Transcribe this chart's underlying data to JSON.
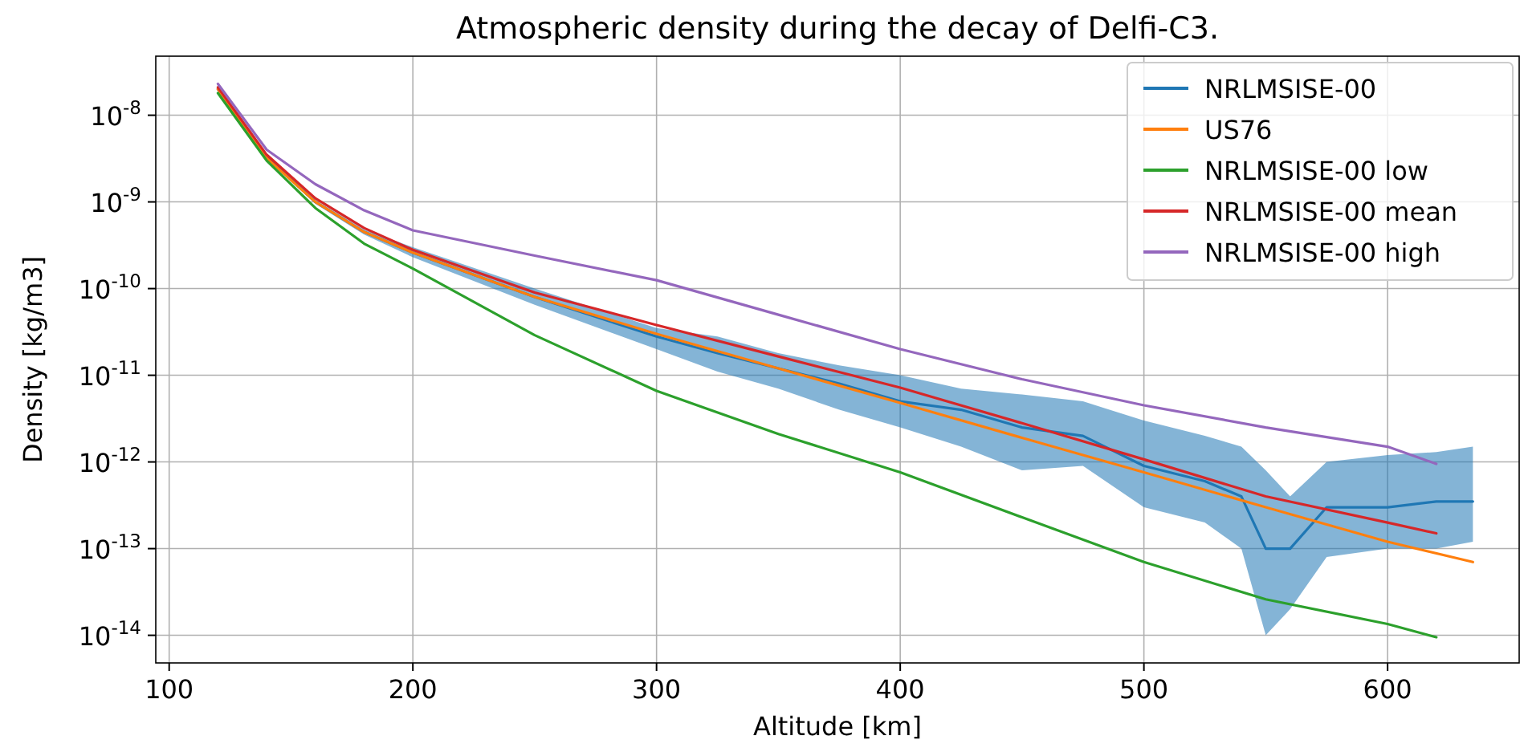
{
  "chart_data": {
    "type": "line",
    "title": "Atmospheric density during the decay of Delfi-C3.",
    "xlabel": "Altitude [km]",
    "ylabel": "Density [kg/m3]",
    "log": "y",
    "grid": true,
    "legend": "top right",
    "xlim": [
      94.5,
      654
    ],
    "xticks": [
      100,
      200,
      300,
      400,
      500,
      600
    ],
    "ylim": [
      4.8e-15,
      4.8e-08
    ],
    "yticks": [
      {
        "value": 1e-14,
        "label": "10$^{-14}$"
      },
      {
        "value": 1e-13,
        "label": "10$^{-13}$"
      },
      {
        "value": 1e-12,
        "label": "10$^{-12}$"
      },
      {
        "value": 1e-11,
        "label": "10$^{-11}$"
      },
      {
        "value": 1e-10,
        "label": "10$^{-10}$"
      },
      {
        "value": 1e-09,
        "label": "10$^{-9}$"
      },
      {
        "value": 1e-08,
        "label": "10$^{-8}$"
      }
    ],
    "series": [
      {
        "name": "NRLMSISE-00",
        "color": "#1f77b4",
        "x": [
          120,
          140,
          160,
          180,
          200,
          250,
          300,
          325,
          350,
          375,
          400,
          425,
          450,
          475,
          500,
          525,
          540,
          550,
          560,
          575,
          600,
          620,
          635
        ],
        "values": [
          2e-08,
          3.3e-09,
          1e-09,
          4.5e-10,
          2.6e-10,
          8e-11,
          2.8e-11,
          1.8e-11,
          1.2e-11,
          8e-12,
          5e-12,
          4e-12,
          2.5e-12,
          2e-12,
          9e-13,
          6e-13,
          4e-13,
          1e-13,
          1e-13,
          3e-13,
          3e-13,
          3.5e-13,
          3.5e-13
        ],
        "lower": [
          1.9e-08,
          3.1e-09,
          9.5e-10,
          4.2e-10,
          2.3e-10,
          6.5e-11,
          2e-11,
          1.1e-11,
          7e-12,
          4e-12,
          2.5e-12,
          1.5e-12,
          8e-13,
          9e-13,
          3e-13,
          2e-13,
          1e-13,
          1e-14,
          2e-14,
          8e-14,
          1e-13,
          1e-13,
          1.2e-13
        ],
        "upper": [
          2.1e-08,
          3.5e-09,
          1.05e-09,
          4.8e-10,
          3e-10,
          1e-10,
          3.5e-11,
          2.8e-11,
          1.8e-11,
          1.3e-11,
          1e-11,
          7e-12,
          6e-12,
          5e-12,
          3e-12,
          2e-12,
          1.5e-12,
          8e-13,
          4e-13,
          1e-12,
          1.2e-12,
          1.3e-12,
          1.5e-12
        ]
      },
      {
        "name": "US76",
        "color": "#ff7f0e",
        "x": [
          120,
          140,
          160,
          180,
          200,
          250,
          300,
          350,
          400,
          450,
          500,
          550,
          600,
          635
        ],
        "values": [
          2e-08,
          3.2e-09,
          1e-09,
          4.5e-10,
          2.6e-10,
          8e-11,
          3e-11,
          1.2e-11,
          4.8e-12,
          1.9e-12,
          7.6e-13,
          3e-13,
          1.2e-13,
          7e-14
        ]
      },
      {
        "name": "NRLMSISE-00 low",
        "color": "#2ca02c",
        "x": [
          120,
          140,
          160,
          180,
          200,
          250,
          300,
          350,
          400,
          450,
          500,
          550,
          600,
          620
        ],
        "values": [
          1.8e-08,
          3e-09,
          8.5e-10,
          3.3e-10,
          1.7e-10,
          2.9e-11,
          6.6e-12,
          2.1e-12,
          7.6e-13,
          2.3e-13,
          7e-14,
          2.6e-14,
          1.35e-14,
          9.5e-15
        ]
      },
      {
        "name": "NRLMSISE-00 mean",
        "color": "#d62728",
        "x": [
          120,
          140,
          160,
          180,
          200,
          250,
          300,
          350,
          400,
          450,
          500,
          550,
          600,
          620
        ],
        "values": [
          2.1e-08,
          3.5e-09,
          1.1e-09,
          5e-10,
          2.8e-10,
          9e-11,
          3.8e-11,
          1.65e-11,
          7.2e-12,
          2.8e-12,
          1.07e-12,
          4e-13,
          2e-13,
          1.5e-13
        ]
      },
      {
        "name": "NRLMSISE-00 high",
        "color": "#9467bd",
        "x": [
          120,
          140,
          160,
          180,
          200,
          250,
          300,
          350,
          400,
          450,
          500,
          550,
          600,
          620
        ],
        "values": [
          2.3e-08,
          4e-09,
          1.6e-09,
          8e-10,
          4.7e-10,
          2.4e-10,
          1.25e-10,
          5e-11,
          2e-11,
          9e-12,
          4.5e-12,
          2.5e-12,
          1.5e-12,
          9.5e-13
        ]
      }
    ]
  }
}
